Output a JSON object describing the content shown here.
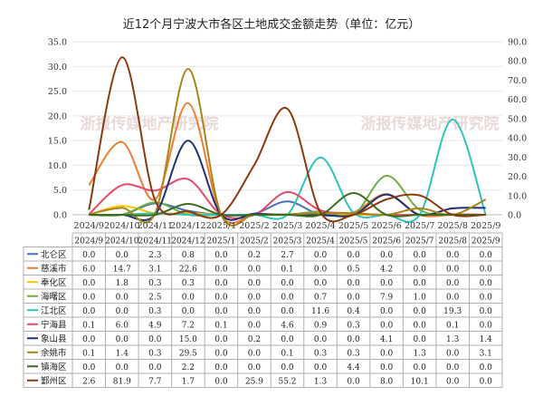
{
  "chart_data": {
    "type": "line",
    "title": "近12个月宁波大市各区土地成交金额走势（单位：亿元）",
    "watermark": "浙报传媒地产研究院",
    "categories": [
      "2024/9",
      "2024/10",
      "2024/11",
      "2024/12",
      "2025/1",
      "2025/2",
      "2025/3",
      "2025/4",
      "2025/5",
      "2025/6",
      "2025/7",
      "2025/8",
      "2025/9"
    ],
    "y_left": {
      "min": 0,
      "max": 35,
      "ticks": [
        "0.0",
        "5.0",
        "10.0",
        "15.0",
        "20.0",
        "25.0",
        "30.0",
        "35.0"
      ]
    },
    "y_right": {
      "min": 0,
      "max": 90,
      "ticks": [
        "0.0",
        "10.0",
        "20.0",
        "30.0",
        "40.0",
        "50.0",
        "60.0",
        "70.0",
        "80.0",
        "90.0"
      ]
    },
    "series": [
      {
        "name": "北仑区",
        "color": "#4472c4",
        "axis": "left",
        "values": [
          "0.0",
          "0.0",
          "2.3",
          "0.8",
          "0.0",
          "0.2",
          "2.7",
          "0.0",
          "0.0",
          "0.0",
          "0.0",
          "0.0",
          "0.0"
        ]
      },
      {
        "name": "慈溪市",
        "color": "#ed7d31",
        "axis": "left",
        "values": [
          "6.0",
          "14.7",
          "3.1",
          "22.6",
          "0.0",
          "0.0",
          "0.1",
          "0.0",
          "0.5",
          "4.2",
          "0.0",
          "0.0",
          "0.0"
        ]
      },
      {
        "name": "奉化区",
        "color": "#ffc000",
        "axis": "left",
        "values": [
          "0.0",
          "1.8",
          "0.3",
          "0.3",
          "0.0",
          "0.0",
          "0.0",
          "0.0",
          "0.0",
          "0.0",
          "0.0",
          "0.0",
          "0.0"
        ]
      },
      {
        "name": "海曙区",
        "color": "#70ad47",
        "axis": "left",
        "values": [
          "0.0",
          "0.0",
          "2.5",
          "0.0",
          "0.0",
          "0.0",
          "0.0",
          "0.7",
          "0.0",
          "7.9",
          "1.0",
          "0.0",
          "0.0"
        ]
      },
      {
        "name": "江北区",
        "color": "#2ec4b6",
        "axis": "left",
        "values": [
          "0.0",
          "0.0",
          "0.3",
          "0.0",
          "0.0",
          "0.0",
          "0.0",
          "11.6",
          "0.4",
          "0.0",
          "0.0",
          "19.3",
          "0.0"
        ]
      },
      {
        "name": "宁海县",
        "color": "#e84a6a",
        "axis": "left",
        "values": [
          "0.1",
          "6.0",
          "4.9",
          "7.2",
          "0.1",
          "0.0",
          "4.6",
          "0.9",
          "0.3",
          "0.0",
          "0.0",
          "0.1",
          "0.0"
        ]
      },
      {
        "name": "象山县",
        "color": "#1f2f78",
        "axis": "left",
        "values": [
          "0.0",
          "0.0",
          "0.0",
          "15.0",
          "0.0",
          "0.2",
          "0.0",
          "0.0",
          "0.0",
          "4.1",
          "0.0",
          "1.3",
          "1.4"
        ]
      },
      {
        "name": "余姚市",
        "color": "#a8841a",
        "axis": "left",
        "values": [
          "0.1",
          "1.4",
          "0.3",
          "29.5",
          "0.0",
          "0.0",
          "0.1",
          "0.3",
          "0.3",
          "0.0",
          "1.3",
          "0.0",
          "3.1"
        ]
      },
      {
        "name": "镇海区",
        "color": "#3d6b1f",
        "axis": "left",
        "values": [
          "0.0",
          "0.0",
          "0.0",
          "2.2",
          "0.0",
          "0.0",
          "0.0",
          "0.0",
          "4.4",
          "0.0",
          "0.0",
          "0.0",
          "0.0"
        ]
      },
      {
        "name": "鄞州区",
        "color": "#8b3a0e",
        "axis": "right",
        "values": [
          "2.6",
          "81.9",
          "7.7",
          "1.7",
          "0.0",
          "25.9",
          "55.2",
          "1.3",
          "0.0",
          "8.0",
          "10.1",
          "0.0",
          "0.0"
        ]
      }
    ]
  }
}
